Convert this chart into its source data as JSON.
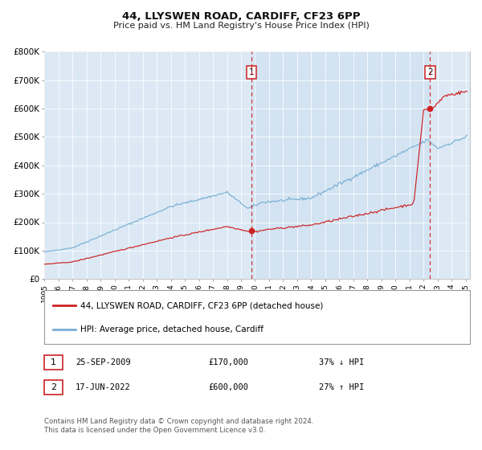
{
  "title": "44, LLYSWEN ROAD, CARDIFF, CF23 6PP",
  "subtitle": "Price paid vs. HM Land Registry's House Price Index (HPI)",
  "bg_color": "#dce9f5",
  "plot_bg_color": "#dce9f5",
  "outer_bg_color": "#ffffff",
  "hpi_color": "#7ab0d4",
  "price_color": "#cc2222",
  "marker_color": "#cc2222",
  "x_start_year": 1995,
  "x_end_year": 2025,
  "y_max": 800000,
  "y_min": 0,
  "y_ticks": [
    0,
    100000,
    200000,
    300000,
    400000,
    500000,
    600000,
    700000,
    800000
  ],
  "y_tick_labels": [
    "£0",
    "£100K",
    "£200K",
    "£300K",
    "£400K",
    "£500K",
    "£600K",
    "£700K",
    "£800K"
  ],
  "transaction1_date": 2009.73,
  "transaction1_price": 170000,
  "transaction1_label": "1",
  "transaction2_date": 2022.46,
  "transaction2_price": 600000,
  "transaction2_label": "2",
  "legend_line1": "44, LLYSWEN ROAD, CARDIFF, CF23 6PP (detached house)",
  "legend_line2": "HPI: Average price, detached house, Cardiff",
  "table_row1": [
    "1",
    "25-SEP-2009",
    "£170,000",
    "37% ↓ HPI"
  ],
  "table_row2": [
    "2",
    "17-JUN-2022",
    "£600,000",
    "27% ↑ HPI"
  ],
  "footer": "Contains HM Land Registry data © Crown copyright and database right 2024.\nThis data is licensed under the Open Government Licence v3.0."
}
